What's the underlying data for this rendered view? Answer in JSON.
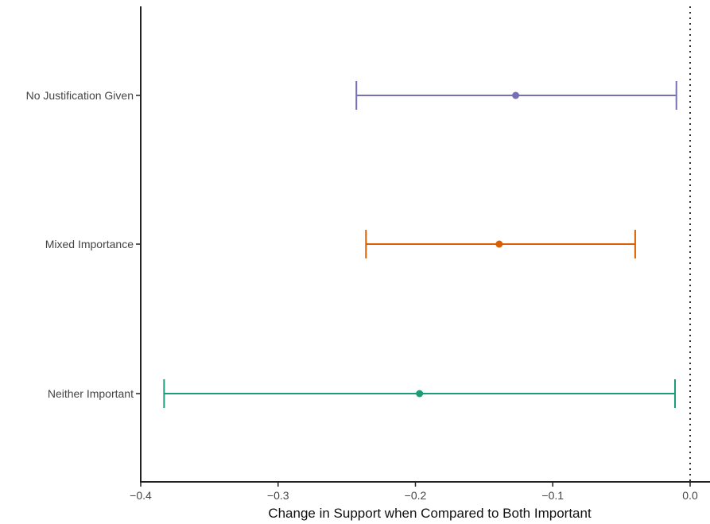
{
  "chart_data": {
    "type": "errorbar",
    "title": "",
    "xlabel": "Change in Support when Compared to Both Important",
    "ylabel": "",
    "xlim": [
      -0.4,
      0.0
    ],
    "xticks": [
      -0.4,
      -0.3,
      -0.2,
      -0.1,
      0.0
    ],
    "xtick_labels": [
      "−0.4",
      "−0.3",
      "−0.2",
      "−0.1",
      "0.0"
    ],
    "reference_line": {
      "x": 0.0,
      "style": "dotted"
    },
    "grid": false,
    "legend": "none",
    "series": [
      {
        "category": "No Justification Given",
        "estimate": -0.127,
        "lower": -0.243,
        "upper": -0.01,
        "color": "#7570b3"
      },
      {
        "category": "Mixed Importance",
        "estimate": -0.139,
        "lower": -0.236,
        "upper": -0.04,
        "color": "#d95f02"
      },
      {
        "category": "Neither Important",
        "estimate": -0.197,
        "lower": -0.383,
        "upper": -0.011,
        "color": "#1b9e77"
      }
    ]
  }
}
